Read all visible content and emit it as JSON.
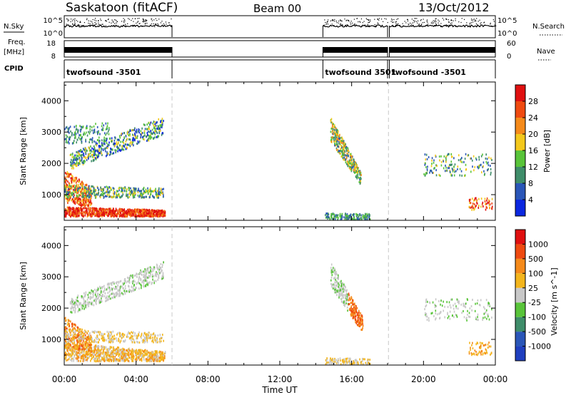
{
  "header": {
    "site": "Saskatoon (fitACF)",
    "beam": "Beam 00",
    "date": "13/Oct/2012"
  },
  "colors": {
    "power_scale": [
      "#0b27e0",
      "#2a56b8",
      "#3f8d6a",
      "#59c43a",
      "#f3c81c",
      "#f58a1a",
      "#ef4a10",
      "#e01010"
    ],
    "velocity_scale": [
      "#e01010",
      "#ef4a10",
      "#f58a1a",
      "#f3b51c",
      "#c8c8c8",
      "#59c43a",
      "#3f8d6a",
      "#2a56b8",
      "#1f3fbf"
    ],
    "gap_line": "#c8c8c8"
  },
  "chart_data": [
    {
      "type": "line",
      "name": "nsky-nsearch-panel",
      "left_label": "N.Sky",
      "right_label": "N.Search",
      "left_ticks": [
        "10^5",
        "10^0"
      ],
      "right_ticks": [
        "10^5",
        "10^0"
      ]
    },
    {
      "type": "line",
      "name": "freq-nave-panel",
      "left_label_line1": "Freq.",
      "left_label_line2": "[MHz]",
      "right_label": "Nave",
      "left_ticks": [
        "18",
        "8"
      ],
      "right_ticks": [
        "60",
        "0"
      ]
    },
    {
      "type": "table",
      "name": "cpid-panel",
      "label": "CPID",
      "segments": [
        {
          "start": 0.0,
          "end": 6.0,
          "label": "twofsound -3501"
        },
        {
          "start": 14.4,
          "end": 18.0,
          "label": "twofsound 3501"
        },
        {
          "start": 18.1,
          "end": 24.0,
          "label": "twofsound -3501"
        }
      ]
    },
    {
      "type": "heatmap",
      "name": "power-panel",
      "ylabel": "Slant Range [km]",
      "yticks": [
        1000,
        2000,
        3000,
        4000
      ],
      "ylim": [
        180,
        4600
      ],
      "xlim": [
        0,
        24
      ],
      "colorbar_label": "Power [dB]",
      "colorbar_ticks": [
        "4",
        "8",
        "12",
        "16",
        "20",
        "24",
        "28"
      ]
    },
    {
      "type": "heatmap",
      "name": "velocity-panel",
      "ylabel": "Slant Range [km]",
      "yticks": [
        1000,
        2000,
        3000,
        4000
      ],
      "ylim": [
        180,
        4600
      ],
      "xlim": [
        0,
        24
      ],
      "colorbar_label": "Velocity [m s^-1]",
      "colorbar_ticks": [
        "1000",
        "500",
        "100",
        "25",
        "-25",
        "-100",
        "-500",
        "-1000"
      ]
    }
  ],
  "xaxis": {
    "ticks": [
      "00:00",
      "04:00",
      "08:00",
      "12:00",
      "16:00",
      "20:00",
      "00:00"
    ],
    "label": "Time UT"
  }
}
